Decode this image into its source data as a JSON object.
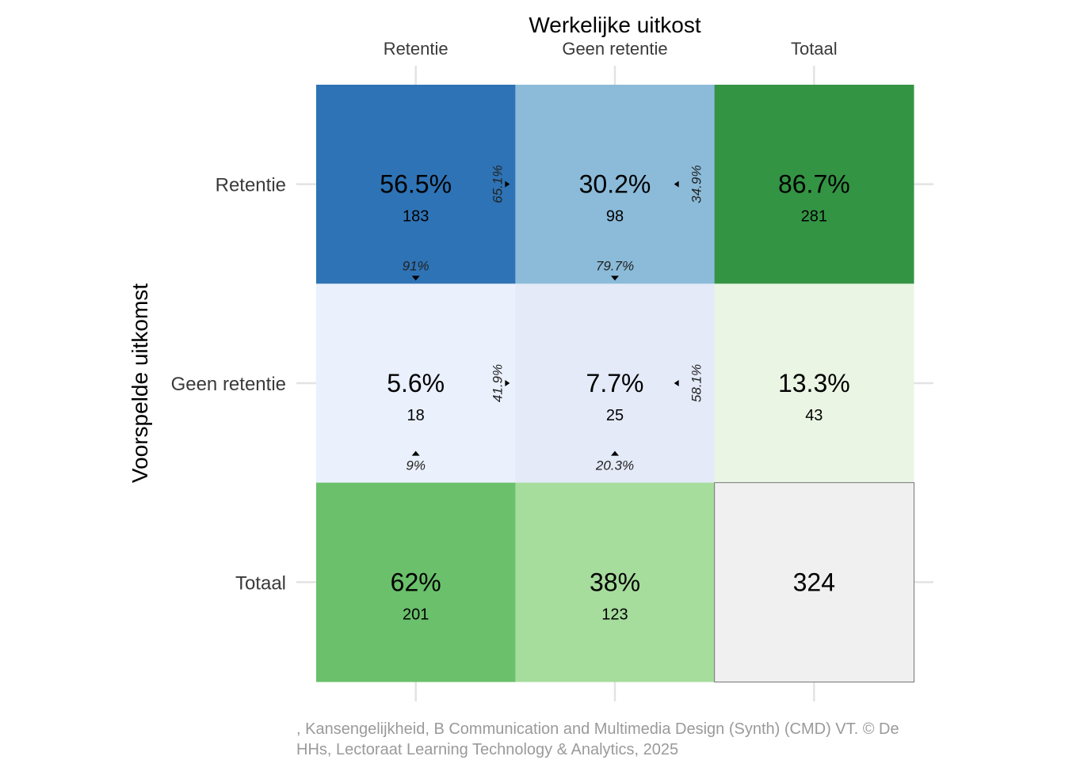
{
  "chart_data": {
    "type": "heatmap",
    "title": "Werkelijke uitkost",
    "xlabel": "Werkelijke uitkost",
    "ylabel": "Voorspelde uitkomst",
    "columns": [
      "Retentie",
      "Geen retentie",
      "Totaal"
    ],
    "rows": [
      "Retentie",
      "Geen retentie",
      "Totaal"
    ],
    "grid": true,
    "legend": "none",
    "cells": [
      {
        "row": 0,
        "col": 0,
        "pct": "56.5%",
        "count": "183",
        "fill": "#2e73b5"
      },
      {
        "row": 0,
        "col": 1,
        "pct": "30.2%",
        "count": "98",
        "fill": "#8bbbd9"
      },
      {
        "row": 0,
        "col": 2,
        "pct": "86.7%",
        "count": "281",
        "fill": "#339444"
      },
      {
        "row": 1,
        "col": 0,
        "pct": "5.6%",
        "count": "18",
        "fill": "#eaf0fc"
      },
      {
        "row": 1,
        "col": 1,
        "pct": "7.7%",
        "count": "25",
        "fill": "#e4eaf8"
      },
      {
        "row": 1,
        "col": 2,
        "pct": "13.3%",
        "count": "43",
        "fill": "#eaf5e3"
      },
      {
        "row": 2,
        "col": 0,
        "pct": "62%",
        "count": "201",
        "fill": "#6ac06b"
      },
      {
        "row": 2,
        "col": 1,
        "pct": "38%",
        "count": "123",
        "fill": "#a6dc9c"
      },
      {
        "row": 2,
        "col": 2,
        "pct": "",
        "count": "324",
        "fill": "#f0f0f0"
      }
    ],
    "row_shares": [
      {
        "row": 0,
        "col": 0,
        "value": "65.1%",
        "arrow": "right"
      },
      {
        "row": 0,
        "col": 1,
        "value": "34.9%",
        "arrow": "left"
      },
      {
        "row": 1,
        "col": 0,
        "value": "41.9%",
        "arrow": "right"
      },
      {
        "row": 1,
        "col": 1,
        "value": "58.1%",
        "arrow": "left"
      }
    ],
    "col_shares": [
      {
        "row": 0,
        "col": 0,
        "value": "91%",
        "arrow": "down"
      },
      {
        "row": 0,
        "col": 1,
        "value": "79.7%",
        "arrow": "down"
      },
      {
        "row": 1,
        "col": 0,
        "value": "9%",
        "arrow": "up"
      },
      {
        "row": 1,
        "col": 1,
        "value": "20.3%",
        "arrow": "up"
      }
    ],
    "colors": {
      "text": "#000000",
      "axis_text": "#3a3a3a",
      "grid": "#e3e3e3",
      "total_border": "#777777"
    }
  },
  "caption": ", Kansengelijkheid, B Communication and Multimedia Design (Synth) (CMD) VT. © De HHs, Lectoraat Learning Technology & Analytics, 2025"
}
